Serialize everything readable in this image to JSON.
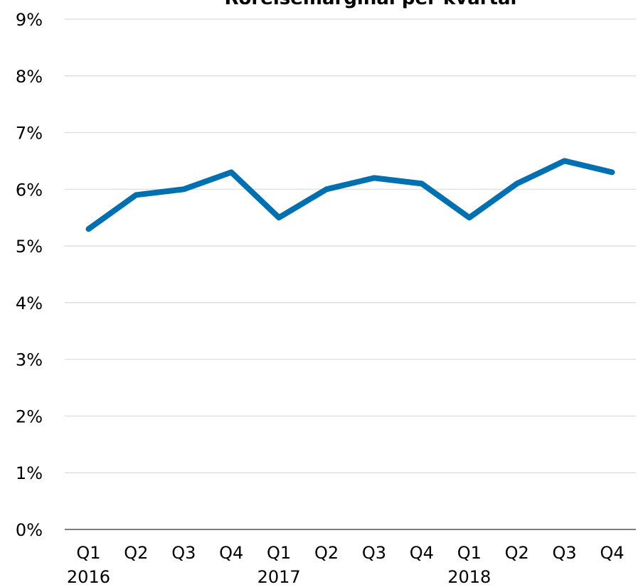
{
  "chart_data": {
    "type": "line",
    "title": "Rörelsemarginal per kvartal",
    "categories": [
      "Q1",
      "Q2",
      "Q3",
      "Q4",
      "Q1",
      "Q2",
      "Q3",
      "Q4",
      "Q1",
      "Q2",
      "Q3",
      "Q4"
    ],
    "groups": [
      {
        "label": "2016",
        "start": 0,
        "count": 4
      },
      {
        "label": "2017",
        "start": 4,
        "count": 4
      },
      {
        "label": "2018",
        "start": 8,
        "count": 4
      }
    ],
    "series": [
      {
        "values": [
          5.3,
          5.9,
          6.0,
          6.3,
          5.5,
          6.0,
          6.2,
          6.1,
          5.5,
          6.1,
          6.5,
          6.3
        ],
        "color": "#0070b0"
      }
    ],
    "ylim": [
      0,
      9
    ],
    "yticks": [
      {
        "value": 0,
        "label": "0%"
      },
      {
        "value": 1,
        "label": "1%"
      },
      {
        "value": 2,
        "label": "2%"
      },
      {
        "value": 3,
        "label": "3%"
      },
      {
        "value": 4,
        "label": "4%"
      },
      {
        "value": 5,
        "label": "5%"
      },
      {
        "value": 6,
        "label": "6%"
      },
      {
        "value": 7,
        "label": "7%"
      },
      {
        "value": 8,
        "label": "8%"
      },
      {
        "value": 9,
        "label": "9%"
      }
    ],
    "grid": true,
    "gridColor": "#d9d9d9",
    "axisColor": "#7f7f7f"
  }
}
